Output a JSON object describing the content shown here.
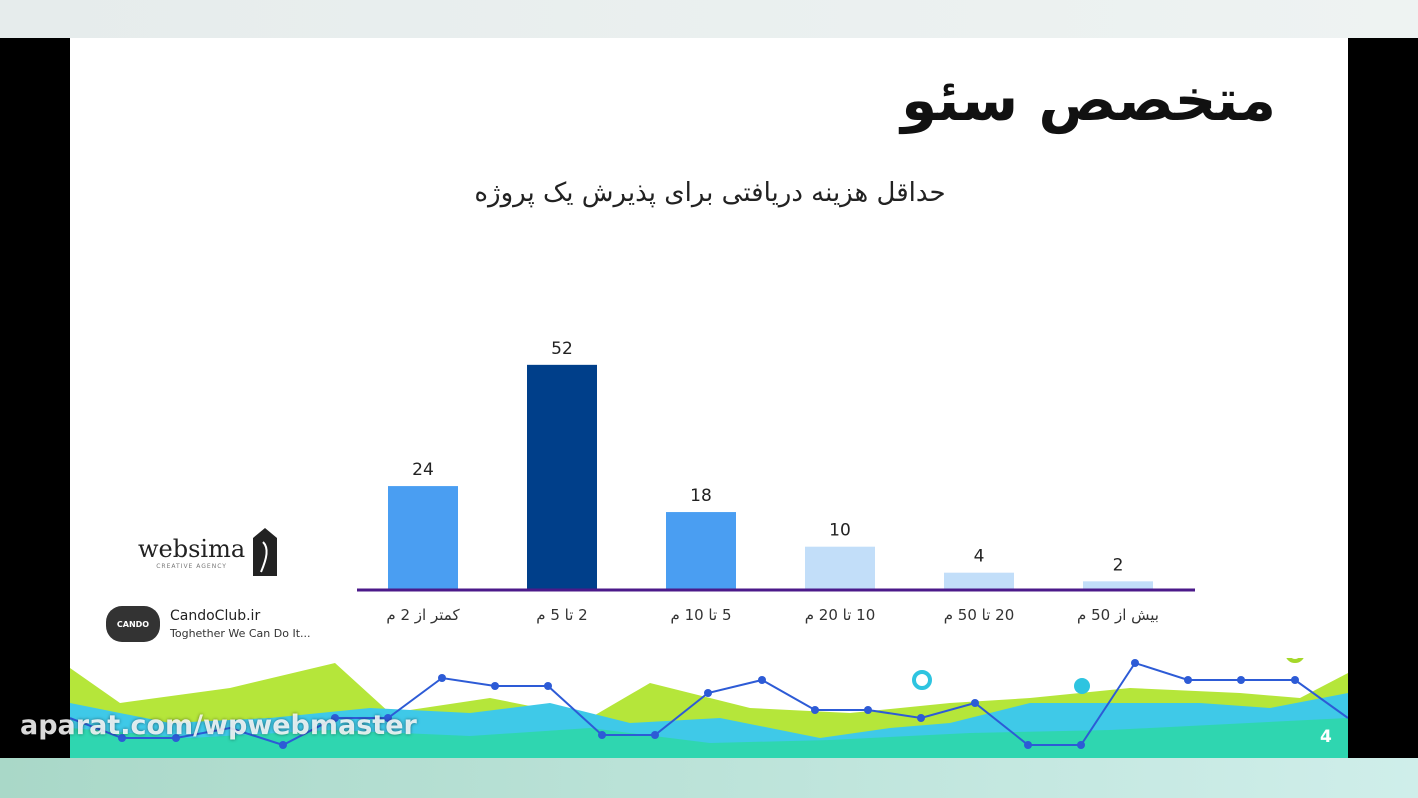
{
  "slide": {
    "title": "متخصص سئو",
    "page_number": "4"
  },
  "logos": {
    "websima": {
      "name": "websima",
      "tagline": "CREATIVE AGENCY"
    },
    "cando": {
      "badge": "CANDO",
      "name": "CandoClub.ir",
      "tagline": "Toghether We Can Do It..."
    }
  },
  "watermark": "aparat.com/wpwebmaster",
  "chart_data": {
    "type": "bar",
    "title": "حداقل هزینه دریافتی برای پذیرش یک پروژه",
    "categories": [
      "کمتر از 2 م",
      "2 تا 5 م",
      "5 تا 10 م",
      "10 تا 20 م",
      "20 تا 50 م",
      "بیش از 50 م"
    ],
    "values": [
      24,
      52,
      18,
      10,
      4,
      2
    ],
    "colors": [
      "#4a9ef2",
      "#003f8a",
      "#4a9ef2",
      "#c2def9",
      "#c2def9",
      "#c2def9"
    ],
    "axis_color": "#4b1a8a",
    "grid": false,
    "data_labels": true
  }
}
